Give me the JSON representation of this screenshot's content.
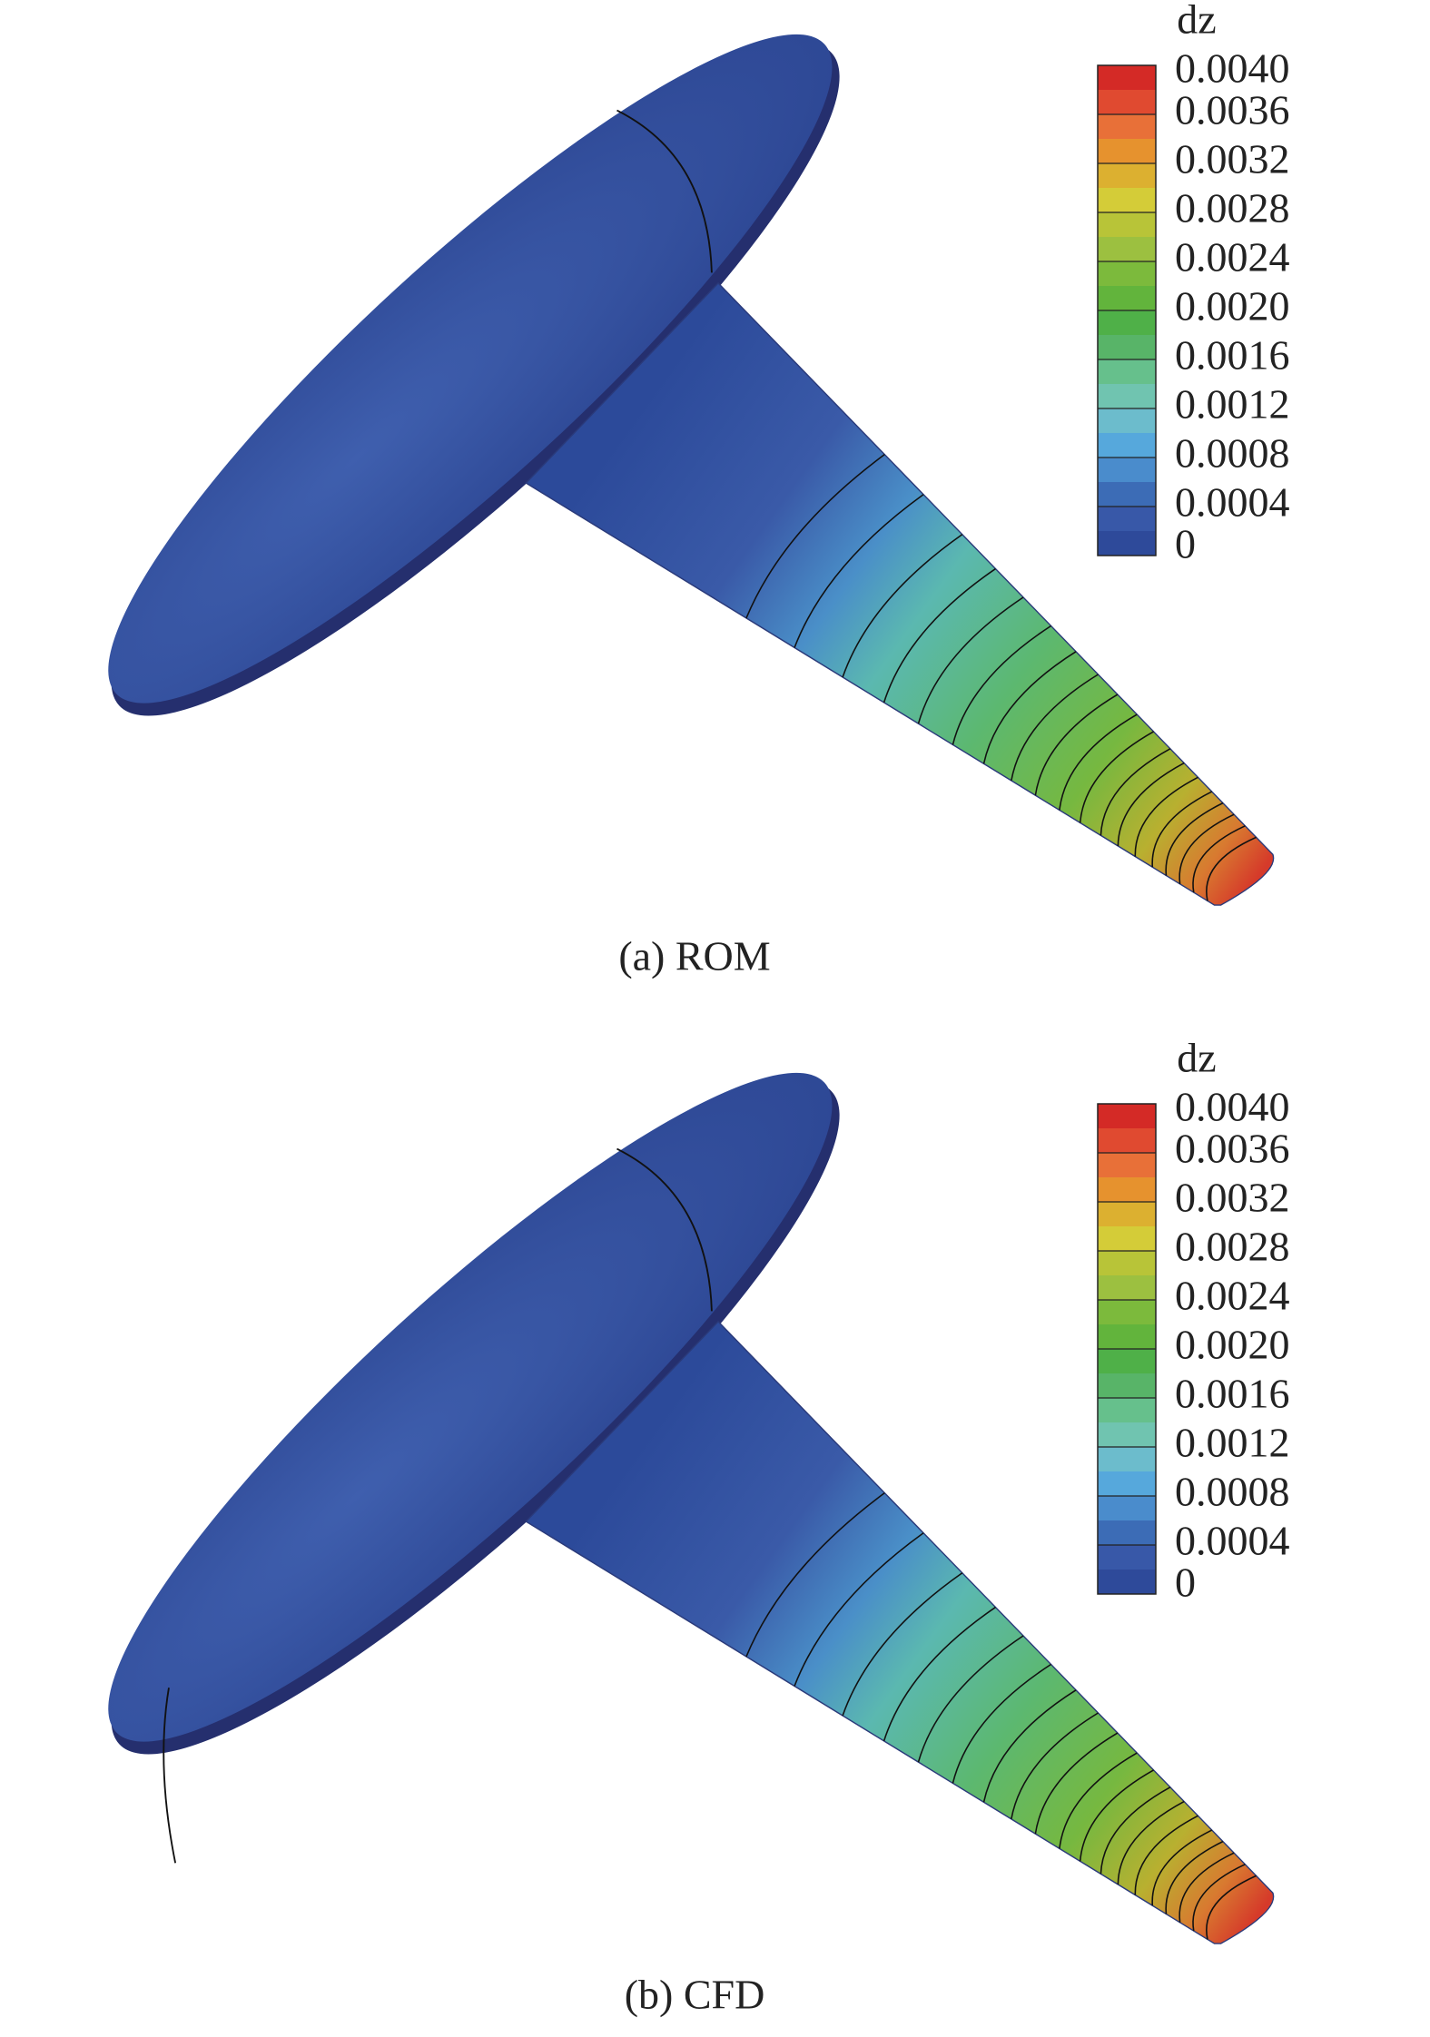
{
  "panels": [
    {
      "colorbar": {
        "title": "dz",
        "labels": [
          "0.0040",
          "0.0036",
          "0.0032",
          "0.0028",
          "0.0024",
          "0.0020",
          "0.0016",
          "0.0012",
          "0.0008",
          "0.0004",
          "0"
        ]
      },
      "caption": "(a) ROM"
    },
    {
      "colorbar": {
        "title": "dz",
        "labels": [
          "0.0040",
          "0.0036",
          "0.0032",
          "0.0028",
          "0.0024",
          "0.0020",
          "0.0016",
          "0.0012",
          "0.0008",
          "0.0004",
          "0"
        ]
      },
      "caption": "(b) CFD"
    }
  ]
}
